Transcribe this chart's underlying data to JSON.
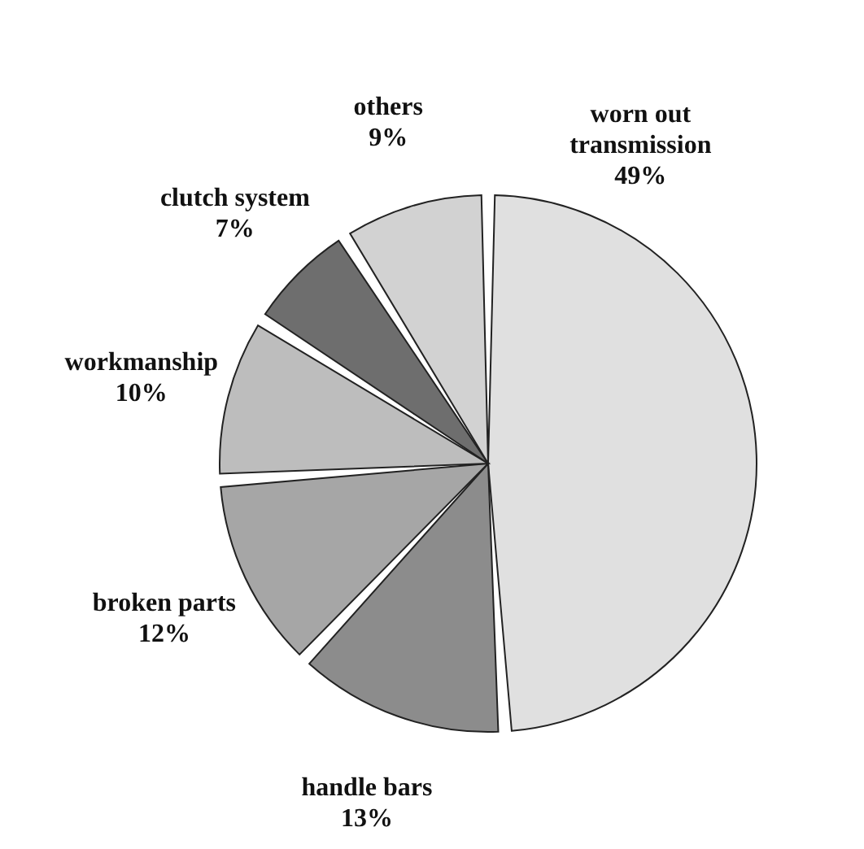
{
  "chart_data": {
    "type": "pie",
    "categories": [
      "worn out transmission",
      "handle bars",
      "broken parts",
      "workmanship",
      "clutch system",
      "others"
    ],
    "values": [
      49,
      13,
      12,
      10,
      7,
      9
    ],
    "value_labels": [
      "49%",
      "13%",
      "12%",
      "10%",
      "7%",
      "9%"
    ],
    "colors": [
      "#e0e0e0",
      "#8c8c8c",
      "#a6a6a6",
      "#bdbdbd",
      "#6e6e6e",
      "#d2d2d2"
    ]
  }
}
